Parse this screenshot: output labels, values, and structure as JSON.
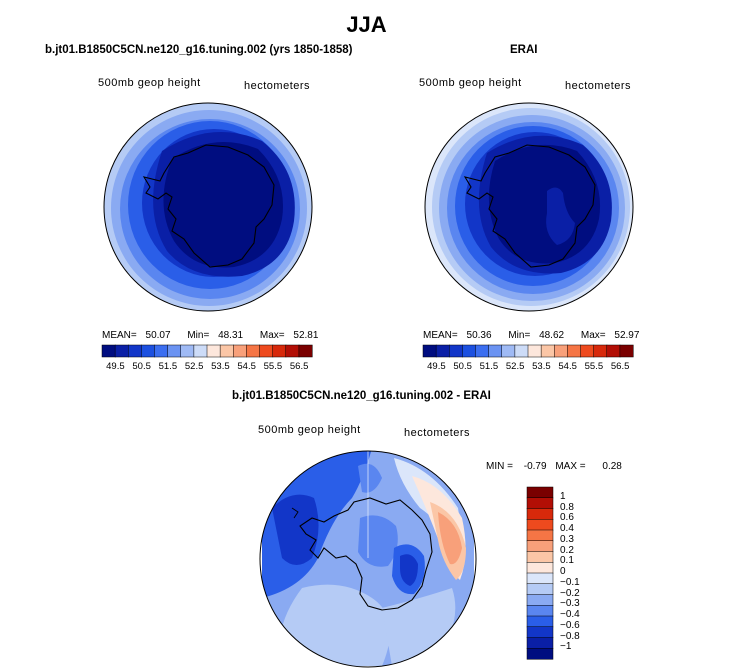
{
  "main_title": "JJA",
  "panels": [
    {
      "title": "b.jt01.B1850C5CN.ne120_g16.tuning.002 (yrs 1850-1858)",
      "variable": "500mb geop height",
      "units": "hectometers",
      "mean_label": "MEAN=",
      "mean": "50.07",
      "min_label": "Min=",
      "min": "48.31",
      "max_label": "Max=",
      "max": "52.81",
      "colorbar_ticks": [
        "49.5",
        "50.5",
        "51.5",
        "52.5",
        "53.5",
        "54.5",
        "55.5",
        "56.5"
      ]
    },
    {
      "title": "ERAI",
      "variable": "500mb geop height",
      "units": "hectometers",
      "mean_label": "MEAN=",
      "mean": "50.36",
      "min_label": "Min=",
      "min": "48.62",
      "max_label": "Max=",
      "max": "52.97",
      "colorbar_ticks": [
        "49.5",
        "50.5",
        "51.5",
        "52.5",
        "53.5",
        "54.5",
        "55.5",
        "56.5"
      ]
    }
  ],
  "diff_panel": {
    "title": "b.jt01.B1850C5CN.ne120_g16.tuning.002 - ERAI",
    "variable": "500mb geop height",
    "units": "hectometers",
    "min_label": "MIN =",
    "min": "-0.79",
    "max_label": "MAX =",
    "max": "0.28",
    "colorbar_labels": [
      "1",
      "0.8",
      "0.6",
      "0.4",
      "0.3",
      "0.2",
      "0.1",
      "0",
      "−0.1",
      "−0.2",
      "−0.3",
      "−0.4",
      "−0.6",
      "−0.8",
      "−1"
    ]
  },
  "colors": {
    "abs_scale": [
      "#000d80",
      "#0a1fa6",
      "#1236c8",
      "#1c50e0",
      "#3b6ef0",
      "#6b93f2",
      "#9fbaf5",
      "#cddcf8",
      "#fde7dc",
      "#fbc6a6",
      "#f8a07a",
      "#f57545",
      "#ee4a1e",
      "#d7290b",
      "#b20e05",
      "#7a0000"
    ],
    "diff_scale": [
      "#000d80",
      "#0a1fa6",
      "#1236c8",
      "#2a5ee8",
      "#5a86f0",
      "#8aaaf2",
      "#b5cbf5",
      "#dbe6fa",
      "#fde7dc",
      "#fbc6a6",
      "#f8a07a",
      "#f57545",
      "#ee4a1e",
      "#d7290b",
      "#b20e05",
      "#7a0000"
    ]
  },
  "icons": {
    "antarctica": "antarctica-coastline"
  }
}
